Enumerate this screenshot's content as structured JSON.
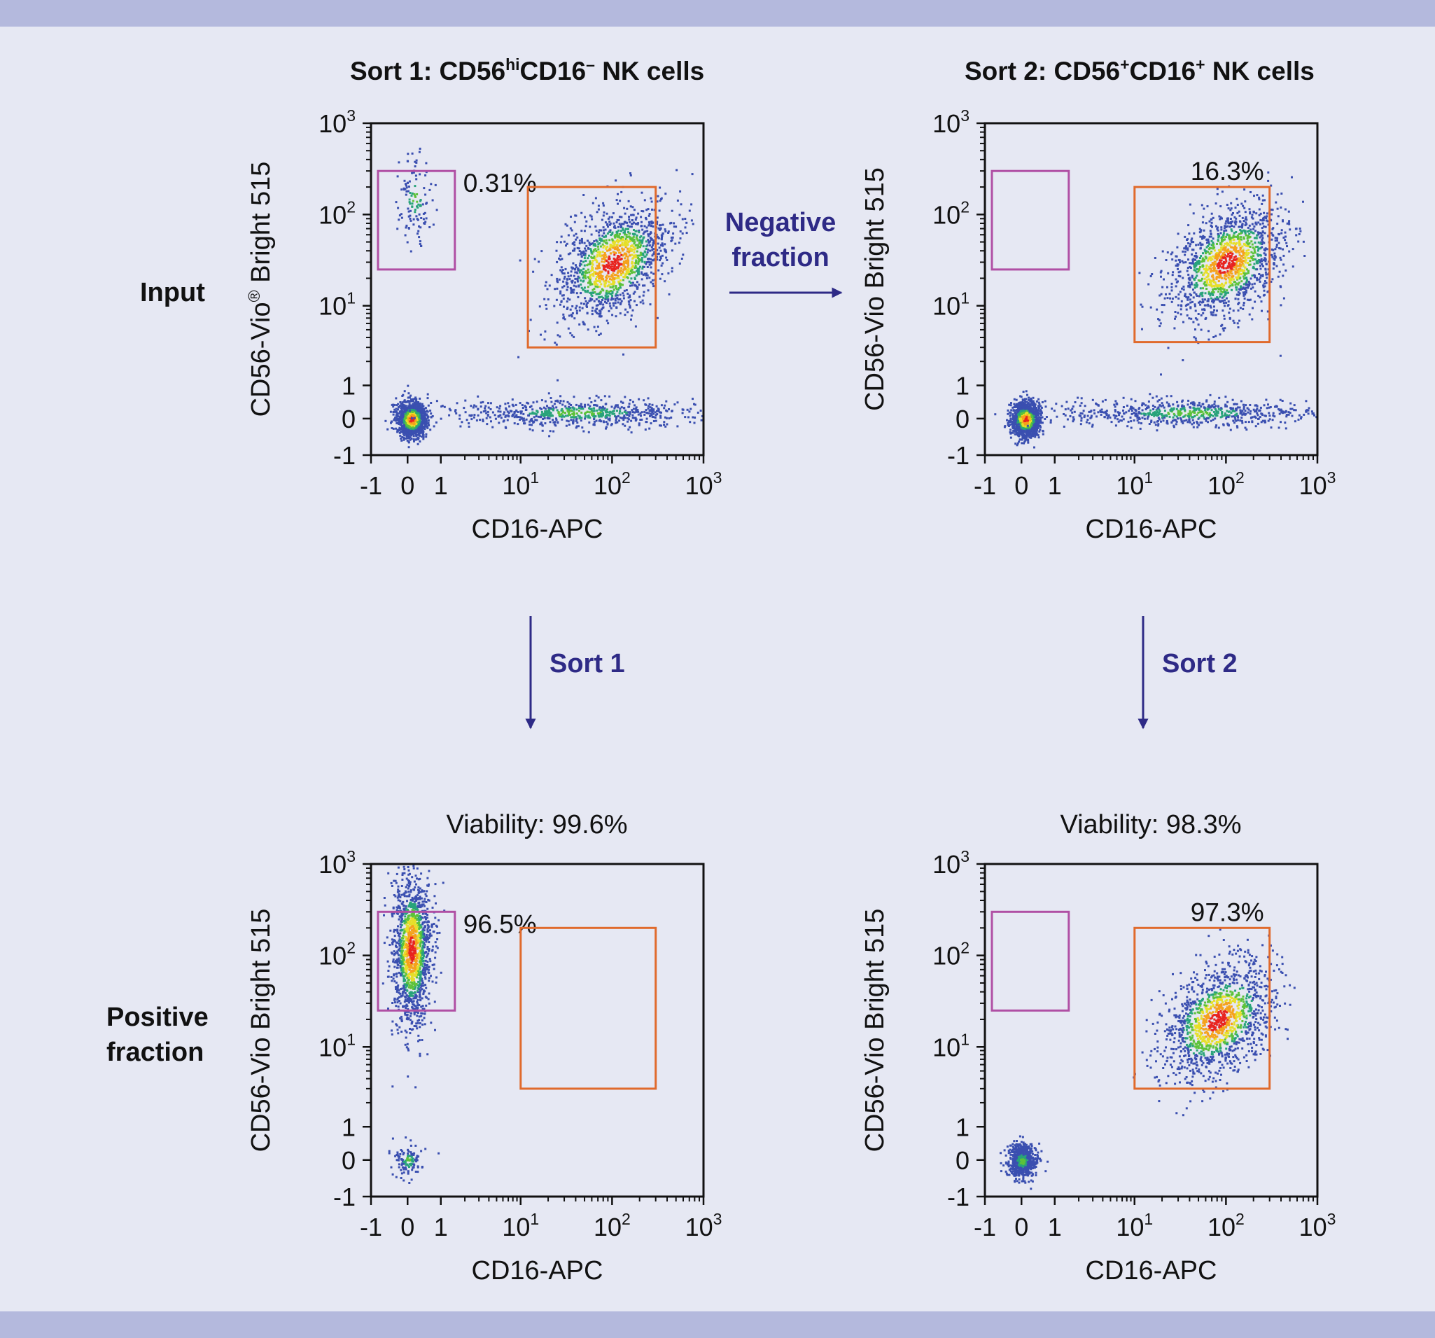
{
  "figure": {
    "row_labels": {
      "input": "Input",
      "positive_line1": "Positive",
      "positive_line2": "fraction"
    },
    "flow": {
      "negative_line1": "Negative",
      "negative_line2": "fraction",
      "sort1": "Sort 1",
      "sort2": "Sort 2"
    },
    "titles": {
      "sort1": {
        "a": "Sort 1: CD56",
        "b": "hi",
        "c": "CD16",
        "d": "–",
        "e": " NK cells"
      },
      "sort2": {
        "a": "Sort 2: CD56",
        "b": "+",
        "c": "CD16",
        "d": "+",
        "e": " NK cells"
      }
    },
    "viability": {
      "sort1": "Viability: 99.6%",
      "sort2": "Viability: 98.3%"
    },
    "colors": {
      "background": "#e6e8f3",
      "band": "#b4b9dd",
      "flow_arrow": "#2e2a86",
      "gate_purple": "#b04fa4",
      "gate_orange": "#e06a2c"
    }
  },
  "chart_data": [
    {
      "type": "scatter",
      "panel": "input-sort1",
      "xlabel": "CD16-APC",
      "ylabel_main": "CD56-Vio",
      "ylabel_sup": "®",
      "ylabel_rest": " Bright 515",
      "x_ticks": [
        "-1",
        "0",
        "1",
        "10",
        "10",
        "10"
      ],
      "x_tick_sups": [
        "",
        "",
        "",
        "1",
        "2",
        "3"
      ],
      "y_ticks": [
        "-1",
        "0",
        "1",
        "10",
        "10",
        "10"
      ],
      "y_tick_sups": [
        "",
        "",
        "",
        "1",
        "2",
        "3"
      ],
      "axis_scale": "biexponential",
      "xlim": [
        -1,
        1000
      ],
      "ylim": [
        -1,
        1000
      ],
      "gates": [
        {
          "name": "CD56hiCD16-",
          "color": "purple",
          "x_range": [
            -1,
            1.5
          ],
          "y_range": [
            25,
            300
          ],
          "percent": "0.31%"
        },
        {
          "name": "CD56+CD16+",
          "color": "orange",
          "x_range": [
            12,
            300
          ],
          "y_range": [
            3,
            200
          ],
          "percent": ""
        }
      ],
      "populations": [
        {
          "name": "double-negative",
          "x": 0.1,
          "y": 0.0,
          "density": "high"
        },
        {
          "name": "CD56+CD16+",
          "x": 100,
          "y": 30,
          "density": "high"
        },
        {
          "name": "CD16+ CD56-",
          "x": 40,
          "y": 0.2,
          "density": "medium"
        },
        {
          "name": "CD56hi",
          "x": 0.2,
          "y": 150,
          "density": "low"
        }
      ]
    },
    {
      "type": "scatter",
      "panel": "input-sort2",
      "xlabel": "CD16-APC",
      "ylabel_main": "CD56-Vio",
      "ylabel_sup": "",
      "ylabel_rest": " Bright 515",
      "x_ticks": [
        "-1",
        "0",
        "1",
        "10",
        "10",
        "10"
      ],
      "x_tick_sups": [
        "",
        "",
        "",
        "1",
        "2",
        "3"
      ],
      "y_ticks": [
        "-1",
        "0",
        "1",
        "10",
        "10",
        "10"
      ],
      "y_tick_sups": [
        "",
        "",
        "",
        "1",
        "2",
        "3"
      ],
      "axis_scale": "biexponential",
      "xlim": [
        -1,
        1000
      ],
      "ylim": [
        -1,
        1000
      ],
      "gates": [
        {
          "name": "CD56hiCD16-",
          "color": "purple",
          "x_range": [
            -1,
            1.5
          ],
          "y_range": [
            25,
            300
          ],
          "percent": ""
        },
        {
          "name": "CD56+CD16+",
          "color": "orange",
          "x_range": [
            10,
            300
          ],
          "y_range": [
            3.5,
            200
          ],
          "percent": "16.3%"
        }
      ],
      "populations": [
        {
          "name": "double-negative",
          "x": 0.1,
          "y": 0.0,
          "density": "high"
        },
        {
          "name": "CD56+CD16+",
          "x": 100,
          "y": 30,
          "density": "high"
        },
        {
          "name": "CD16+ CD56-",
          "x": 40,
          "y": 0.2,
          "density": "medium"
        }
      ]
    },
    {
      "type": "scatter",
      "panel": "positive-sort1",
      "xlabel": "CD16-APC",
      "ylabel_main": "CD56-Vio",
      "ylabel_sup": "",
      "ylabel_rest": " Bright 515",
      "x_ticks": [
        "-1",
        "0",
        "1",
        "10",
        "10",
        "10"
      ],
      "x_tick_sups": [
        "",
        "",
        "",
        "1",
        "2",
        "3"
      ],
      "y_ticks": [
        "-1",
        "0",
        "1",
        "10",
        "10",
        "10"
      ],
      "y_tick_sups": [
        "",
        "",
        "",
        "1",
        "2",
        "3"
      ],
      "axis_scale": "biexponential",
      "xlim": [
        -1,
        1000
      ],
      "ylim": [
        -1,
        1000
      ],
      "gates": [
        {
          "name": "CD56hiCD16-",
          "color": "purple",
          "x_range": [
            -1,
            1.5
          ],
          "y_range": [
            25,
            300
          ],
          "percent": "96.5%"
        },
        {
          "name": "CD56+CD16+",
          "color": "orange",
          "x_range": [
            10,
            300
          ],
          "y_range": [
            3,
            200
          ],
          "percent": ""
        }
      ],
      "populations": [
        {
          "name": "CD56hi",
          "x": 0.1,
          "y": 120,
          "density": "high"
        },
        {
          "name": "double-negative",
          "x": 0.0,
          "y": 0.0,
          "density": "low"
        }
      ]
    },
    {
      "type": "scatter",
      "panel": "positive-sort2",
      "xlabel": "CD16-APC",
      "ylabel_main": "CD56-Vio",
      "ylabel_sup": "",
      "ylabel_rest": " Bright 515",
      "x_ticks": [
        "-1",
        "0",
        "1",
        "10",
        "10",
        "10"
      ],
      "x_tick_sups": [
        "",
        "",
        "",
        "1",
        "2",
        "3"
      ],
      "y_ticks": [
        "-1",
        "0",
        "1",
        "10",
        "10",
        "10"
      ],
      "y_tick_sups": [
        "",
        "",
        "",
        "1",
        "2",
        "3"
      ],
      "axis_scale": "biexponential",
      "xlim": [
        -1,
        1000
      ],
      "ylim": [
        -1,
        1000
      ],
      "gates": [
        {
          "name": "CD56hiCD16-",
          "color": "purple",
          "x_range": [
            -1,
            1.5
          ],
          "y_range": [
            25,
            300
          ],
          "percent": ""
        },
        {
          "name": "CD56+CD16+",
          "color": "orange",
          "x_range": [
            10,
            300
          ],
          "y_range": [
            3,
            200
          ],
          "percent": "97.3%"
        }
      ],
      "populations": [
        {
          "name": "CD56+CD16+",
          "x": 80,
          "y": 20,
          "density": "high"
        },
        {
          "name": "double-negative",
          "x": 0.0,
          "y": 0.0,
          "density": "medium"
        }
      ]
    }
  ]
}
